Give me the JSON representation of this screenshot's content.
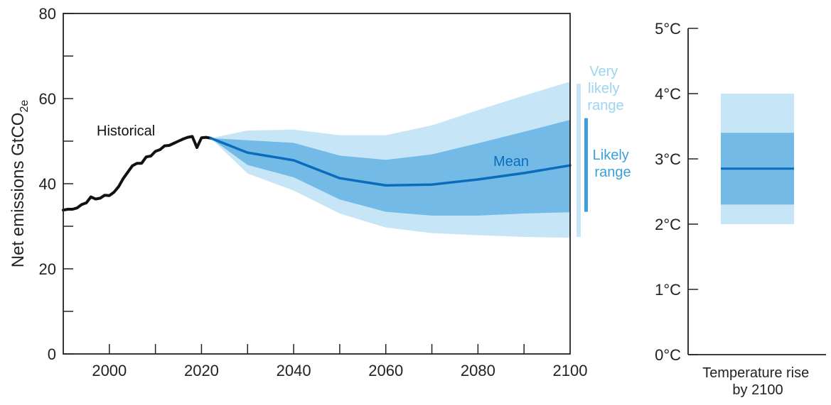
{
  "chart_data": [
    {
      "type": "line",
      "ylabel_main": "Net emissions GtCO",
      "ylabel_sub": "2e",
      "xlim": [
        1990,
        2100
      ],
      "ylim": [
        0,
        80
      ],
      "x_ticks": [
        2000,
        2020,
        2040,
        2060,
        2080,
        2100
      ],
      "y_ticks": [
        0,
        20,
        40,
        60,
        80
      ],
      "y_minor_ticks": [
        10,
        30,
        50,
        70
      ],
      "grid": false,
      "annotations": {
        "historical": "Historical",
        "mean": "Mean",
        "very_likely_line1": "Very",
        "very_likely_line2": "likely",
        "very_likely_line3": "range",
        "likely_line1": "Likely",
        "likely_line2": "range"
      },
      "historical": {
        "x": [
          1990,
          1991,
          1992,
          1993,
          1994,
          1995,
          1996,
          1997,
          1998,
          1999,
          2000,
          2001,
          2002,
          2003,
          2004,
          2005,
          2006,
          2007,
          2008,
          2009,
          2010,
          2011,
          2012,
          2013,
          2014,
          2015,
          2016,
          2017,
          2018,
          2019,
          2020,
          2021,
          2022
        ],
        "y": [
          33.8,
          34.0,
          34.0,
          34.3,
          35.1,
          35.5,
          36.9,
          36.4,
          36.6,
          37.3,
          37.2,
          38.0,
          39.3,
          41.2,
          42.7,
          44.2,
          44.8,
          44.8,
          46.3,
          46.5,
          47.6,
          48.0,
          48.9,
          49.0,
          49.5,
          50.0,
          50.5,
          50.9,
          51.1,
          48.5,
          50.8,
          50.9,
          50.7
        ]
      },
      "projection": {
        "x": [
          2022,
          2030,
          2040,
          2050,
          2060,
          2070,
          2080,
          2090,
          2100
        ],
        "mean": [
          50.7,
          47.3,
          45.5,
          41.3,
          39.6,
          39.8,
          41.0,
          42.5,
          44.3
        ],
        "likely_upper": [
          50.7,
          50.2,
          49.6,
          46.6,
          45.6,
          46.9,
          49.5,
          52.2,
          55.0
        ],
        "likely_lower": [
          50.7,
          44.4,
          41.5,
          36.3,
          33.4,
          32.5,
          32.5,
          33.0,
          33.3
        ],
        "very_likely_upper": [
          50.7,
          52.5,
          52.7,
          51.4,
          51.4,
          53.7,
          57.3,
          60.7,
          64.0
        ],
        "very_likely_lower": [
          50.7,
          42.4,
          38.4,
          33.0,
          29.7,
          28.4,
          27.9,
          27.5,
          27.3
        ]
      },
      "range_bars": {
        "very_likely": [
          27.5,
          63.5
        ],
        "likely": [
          33.4,
          55.4
        ]
      },
      "colors": {
        "historical": "#111111",
        "mean": "#0a6cbd",
        "likely": "#73bbe6",
        "very_likely": "#c6e6f8",
        "very_likely_text": "#9dd5f0",
        "likely_text": "#3a9fda"
      }
    },
    {
      "type": "bar",
      "xlabel_line1": "Temperature rise",
      "xlabel_line2": "by 2100",
      "y_ticks": [
        0,
        1,
        2,
        3,
        4,
        5
      ],
      "y_tick_labels": [
        "0°C",
        "1°C",
        "2°C",
        "3°C",
        "4°C",
        "5°C"
      ],
      "ylim": [
        0,
        5
      ],
      "very_likely_range": [
        2.0,
        4.0
      ],
      "likely_range": [
        2.3,
        3.4
      ],
      "mean": 2.85,
      "colors": {
        "mean": "#0a6cbd",
        "likely": "#73bbe6",
        "very_likely": "#c6e6f8"
      }
    }
  ]
}
